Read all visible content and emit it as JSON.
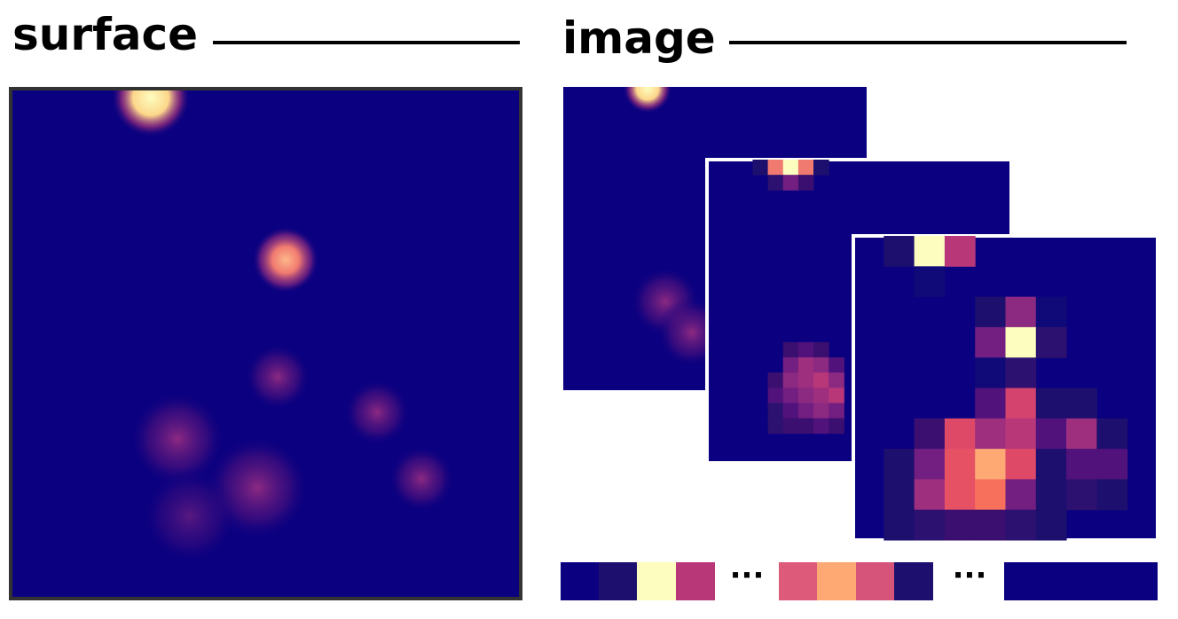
{
  "titles": {
    "surface": "surface",
    "image": "image"
  },
  "ellipses": [
    "···",
    "···"
  ]
}
